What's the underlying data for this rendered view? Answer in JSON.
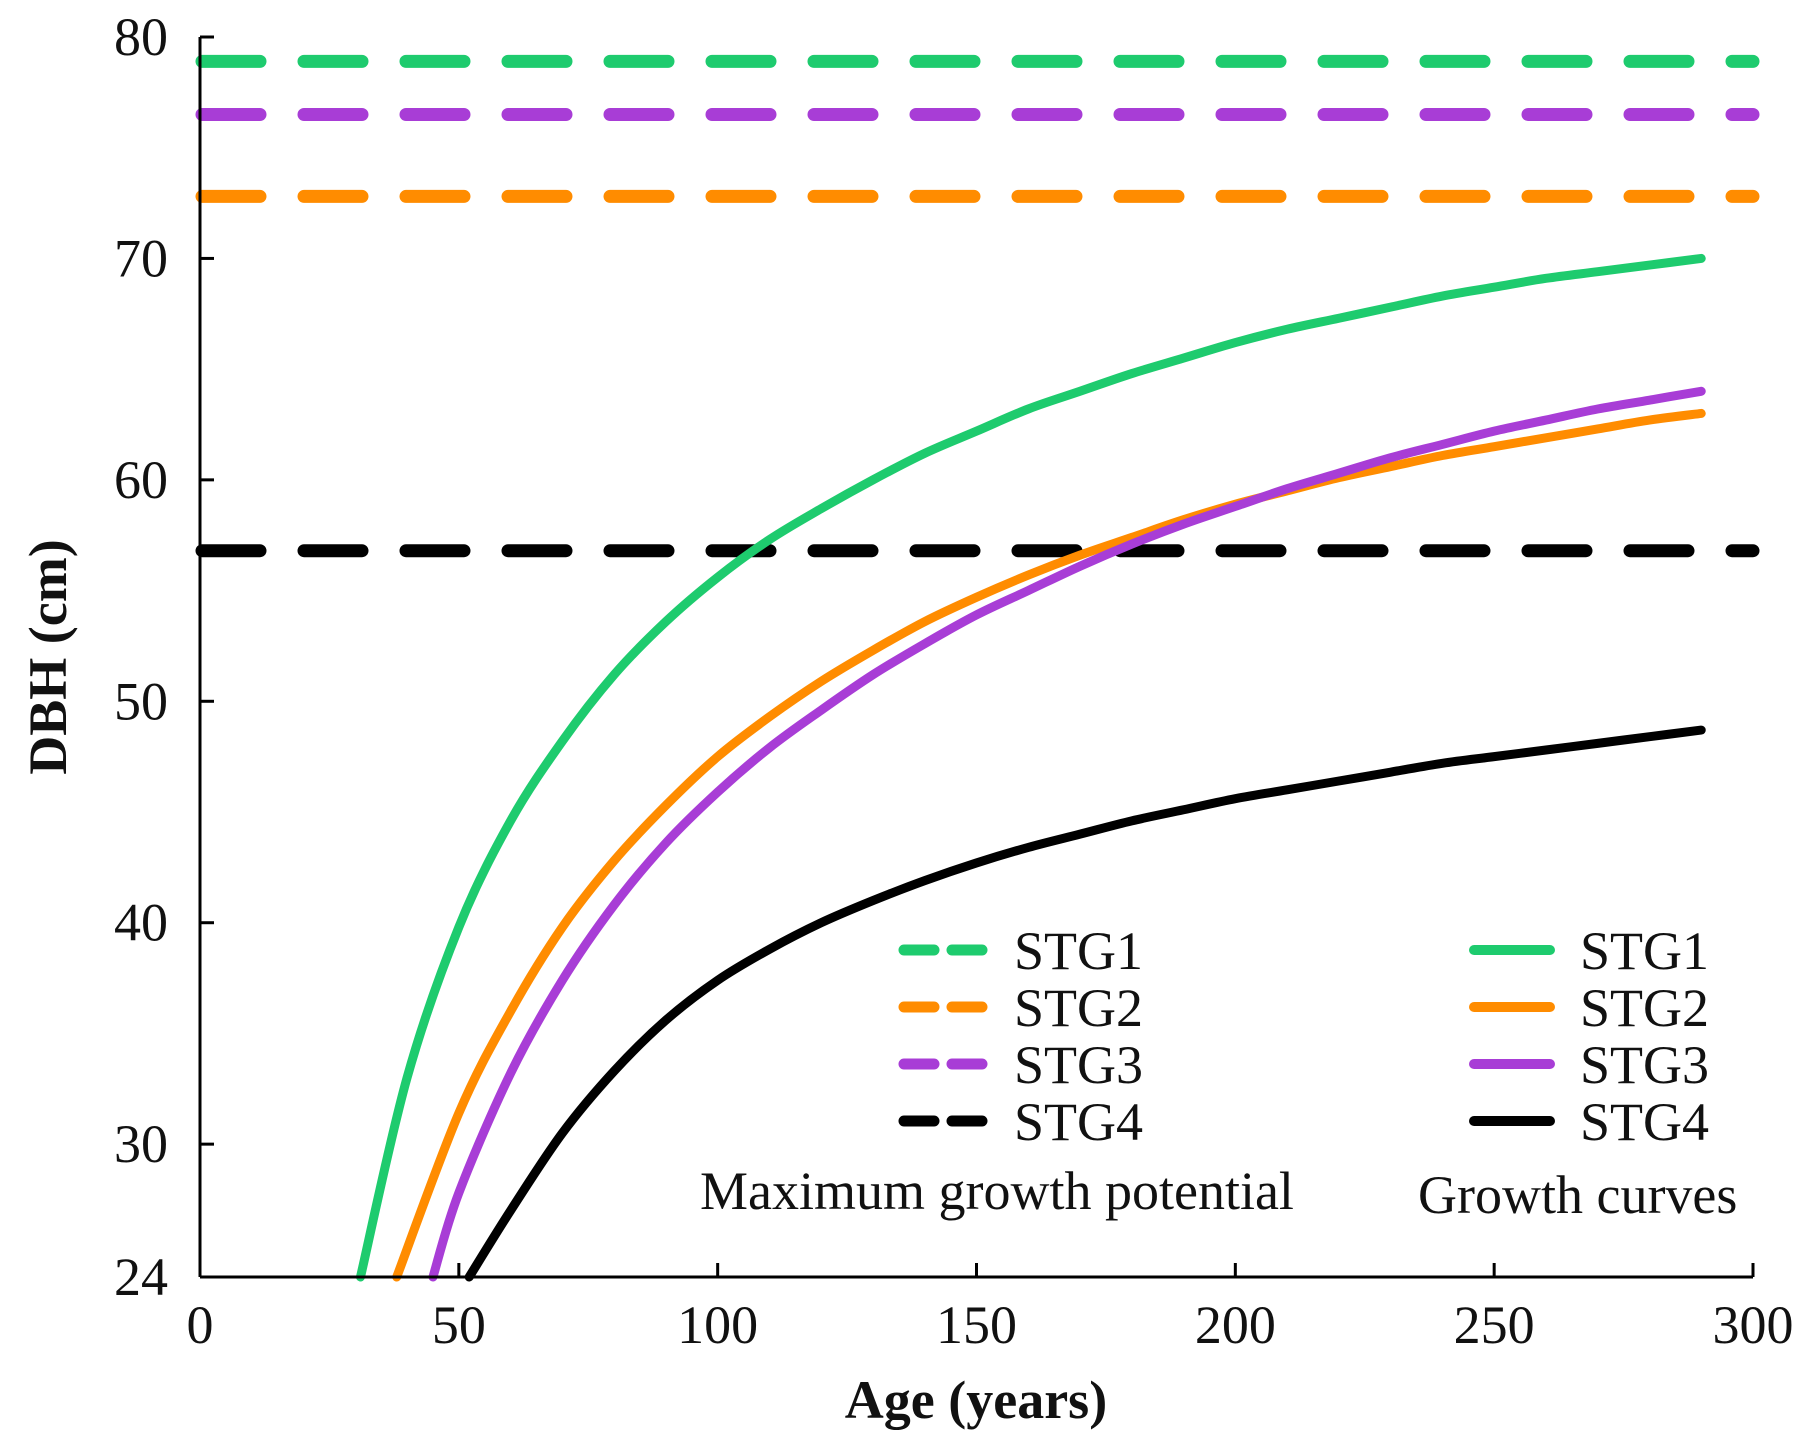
{
  "chart_data": {
    "type": "line",
    "xlabel": "Age (years)",
    "ylabel": "DBH (cm)",
    "xlim": [
      0,
      300
    ],
    "ylim": [
      24,
      80
    ],
    "xticks": [
      0,
      50,
      100,
      150,
      200,
      250,
      300
    ],
    "yticks": [
      24,
      30,
      40,
      50,
      60,
      70,
      80
    ],
    "colors": {
      "STG1": "#1ecb6e",
      "STG2": "#ff8c00",
      "STG3": "#a83dd6",
      "STG4": "#000000"
    },
    "max_potential": {
      "caption": "Maximum growth potential",
      "series": [
        {
          "name": "STG1",
          "value": 78.9
        },
        {
          "name": "STG2",
          "value": 72.8
        },
        {
          "name": "STG3",
          "value": 76.5
        },
        {
          "name": "STG4",
          "value": 56.8
        }
      ]
    },
    "growth_curves": {
      "caption": "Growth curves",
      "series": [
        {
          "name": "STG1",
          "x": [
            31,
            40,
            50,
            60,
            70,
            80,
            90,
            100,
            110,
            120,
            130,
            140,
            150,
            160,
            170,
            180,
            190,
            200,
            210,
            220,
            230,
            240,
            250,
            260,
            270,
            280,
            290
          ],
          "y": [
            24,
            33.0,
            39.8,
            44.6,
            48.2,
            51.2,
            53.6,
            55.6,
            57.3,
            58.7,
            60.0,
            61.2,
            62.2,
            63.2,
            64.0,
            64.8,
            65.5,
            66.2,
            66.8,
            67.3,
            67.8,
            68.3,
            68.7,
            69.1,
            69.4,
            69.7,
            70.0
          ]
        },
        {
          "name": "STG2",
          "x": [
            38,
            50,
            60,
            70,
            80,
            90,
            100,
            110,
            120,
            130,
            140,
            150,
            160,
            170,
            180,
            190,
            200,
            210,
            220,
            230,
            240,
            250,
            260,
            270,
            280,
            290
          ],
          "y": [
            24,
            31.4,
            36.0,
            39.8,
            42.8,
            45.3,
            47.5,
            49.3,
            50.9,
            52.3,
            53.6,
            54.7,
            55.7,
            56.6,
            57.4,
            58.2,
            58.9,
            59.5,
            60.1,
            60.6,
            61.1,
            61.5,
            61.9,
            62.3,
            62.7,
            63.0
          ]
        },
        {
          "name": "STG3",
          "x": [
            45,
            50,
            60,
            70,
            80,
            90,
            100,
            110,
            120,
            130,
            140,
            150,
            160,
            170,
            180,
            190,
            200,
            210,
            220,
            230,
            240,
            250,
            260,
            270,
            280,
            290
          ],
          "y": [
            24,
            27.8,
            33.2,
            37.4,
            40.8,
            43.6,
            45.9,
            47.9,
            49.6,
            51.2,
            52.6,
            53.9,
            55.0,
            56.1,
            57.1,
            58.0,
            58.8,
            59.6,
            60.3,
            61.0,
            61.6,
            62.2,
            62.7,
            63.2,
            63.6,
            64.0
          ]
        },
        {
          "name": "STG4",
          "x": [
            52,
            60,
            70,
            80,
            90,
            100,
            110,
            120,
            130,
            140,
            150,
            160,
            170,
            180,
            190,
            200,
            210,
            220,
            230,
            240,
            250,
            260,
            270,
            280,
            290
          ],
          "y": [
            24,
            27.0,
            30.5,
            33.3,
            35.6,
            37.4,
            38.8,
            40.0,
            41.0,
            41.9,
            42.7,
            43.4,
            44.0,
            44.6,
            45.1,
            45.6,
            46.0,
            46.4,
            46.8,
            47.2,
            47.5,
            47.8,
            48.1,
            48.4,
            48.7
          ]
        }
      ]
    }
  }
}
